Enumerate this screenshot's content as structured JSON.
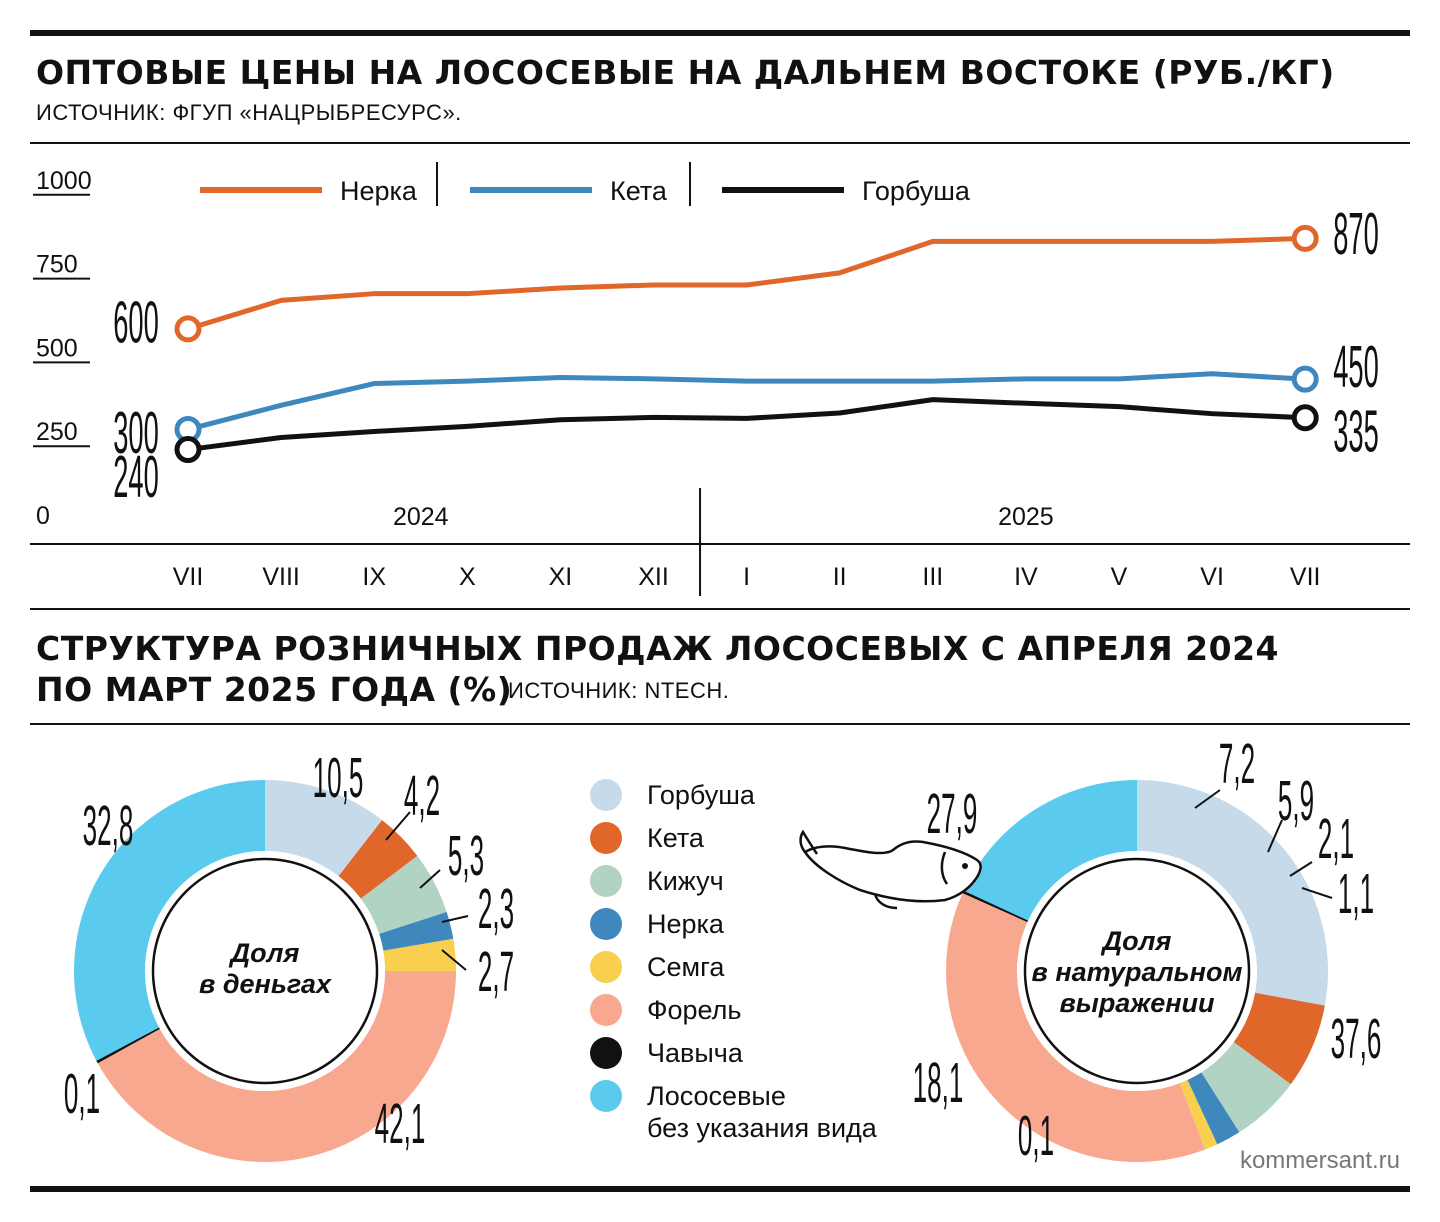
{
  "line_chart": {
    "title": "ОПТОВЫЕ ЦЕНЫ НА ЛОСОСЕВЫЕ НА ДАЛЬНЕМ ВОСТОКЕ (РУБ./КГ)",
    "source": "ИСТОЧНИК: ФГУП «НАЦРЫБРЕСУРС».",
    "years": [
      {
        "label": "2024",
        "from": "VII",
        "to": "XII"
      },
      {
        "label": "2025",
        "from": "I",
        "to": "VII"
      }
    ]
  },
  "donut_section": {
    "title_line1": "СТРУКТУРА РОЗНИЧНЫХ ПРОДАЖ ЛОСОСЕВЫХ С АПРЕЛЯ 2024",
    "title_line2": "ПО МАРТ 2025 ГОДА (%)",
    "source": "ИСТОЧНИК: NTECH."
  },
  "footer": "kommersant.ru",
  "chart_data": [
    {
      "type": "line",
      "title": "ОПТОВЫЕ ЦЕНЫ НА ЛОСОСЕВЫЕ НА ДАЛЬНЕМ ВОСТОКЕ (РУБ./КГ)",
      "categories": [
        "VII",
        "VIII",
        "IX",
        "X",
        "XI",
        "XII",
        "I",
        "II",
        "III",
        "IV",
        "V",
        "VI",
        "VII"
      ],
      "ylim": [
        0,
        1000
      ],
      "yticks": [
        "0",
        "250",
        "500",
        "750",
        "1000"
      ],
      "legend_position": "top",
      "series": [
        {
          "name": "Нерка",
          "color": "#e0662a",
          "values": [
            600,
            685,
            705,
            705,
            722,
            731,
            731,
            767,
            861,
            861,
            861,
            861,
            870
          ],
          "start_label": "600",
          "end_label": "870"
        },
        {
          "name": "Кета",
          "color": "#3f88bd",
          "values": [
            300,
            372,
            437,
            444,
            455,
            451,
            444,
            444,
            444,
            451,
            451,
            466,
            450
          ],
          "start_label": "300",
          "end_label": "450"
        },
        {
          "name": "Горбуша",
          "color": "#111111",
          "values": [
            240,
            276,
            294,
            309,
            329,
            336,
            333,
            349,
            389,
            378,
            368,
            347,
            335
          ],
          "start_label": "240",
          "end_label": "335"
        }
      ]
    },
    {
      "type": "pie",
      "title": "Доля в деньгах",
      "center_lines": [
        "Доля",
        "в деньгах"
      ],
      "categories": [
        "Горбуша",
        "Кета",
        "Кижуч",
        "Нерка",
        "Семга",
        "Форель",
        "Чавыча",
        "Лососевые без указания вида"
      ],
      "values": [
        10.5,
        4.2,
        5.3,
        2.3,
        2.7,
        42.1,
        0.1,
        32.8
      ],
      "labels": [
        "10,5",
        "4,2",
        "5,3",
        "2,3",
        "2,7",
        "42,1",
        "0,1",
        "32,8"
      ]
    },
    {
      "type": "pie",
      "title": "Доля в натуральном выражении",
      "center_lines": [
        "Доля",
        "в натуральном",
        "выражении"
      ],
      "categories": [
        "Горбуша",
        "Кета",
        "Кижуч",
        "Нерка",
        "Семга",
        "Форель",
        "Чавыча",
        "Лососевые без указания вида"
      ],
      "values": [
        27.9,
        7.2,
        5.9,
        2.1,
        1.1,
        37.6,
        0.1,
        18.1
      ],
      "labels": [
        "27,9",
        "7,2",
        "5,9",
        "2,1",
        "1,1",
        "37,6",
        "0,1",
        "18,1"
      ]
    }
  ],
  "legend": [
    {
      "label": "Горбуша",
      "color": "#c7dae9"
    },
    {
      "label": "Кета",
      "color": "#e0662a"
    },
    {
      "label": "Кижуч",
      "color": "#b0d3c4"
    },
    {
      "label": "Нерка",
      "color": "#3f88bd"
    },
    {
      "label": "Семга",
      "color": "#f8cf4f"
    },
    {
      "label": "Форель",
      "color": "#f8a88f"
    },
    {
      "label": "Чавыча",
      "color": "#111111"
    },
    {
      "label": "Лососевые",
      "label2": "без указания вида",
      "color": "#5acbef"
    }
  ]
}
